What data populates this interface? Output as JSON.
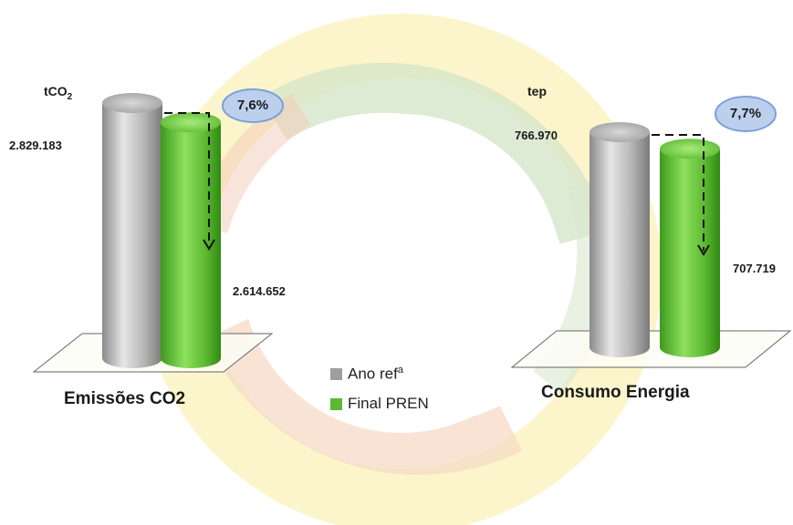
{
  "colors": {
    "ref": "#9e9e9e",
    "final": "#5cb831",
    "badge": "#bcd0ee",
    "badge_border": "#7d9fd8"
  },
  "legend": {
    "ref_label": "Ano ref",
    "ref_sup": "a",
    "final_label": "Final PREN"
  },
  "chart_data": [
    {
      "type": "bar",
      "title": "Emissões CO2",
      "unit": "tCO",
      "unit_sub": "2",
      "categories": [
        "Ano refª",
        "Final PREN"
      ],
      "values": [
        2829183,
        2614652
      ],
      "value_labels": [
        "2.829.183",
        "2.614.652"
      ],
      "reduction_label": "7,6%"
    },
    {
      "type": "bar",
      "title": "Consumo Energia",
      "unit": "tep",
      "categories": [
        "Ano refª",
        "Final PREN"
      ],
      "values": [
        766970,
        707719
      ],
      "value_labels": [
        "766.970",
        "707.719"
      ],
      "reduction_label": "7,7%"
    }
  ]
}
